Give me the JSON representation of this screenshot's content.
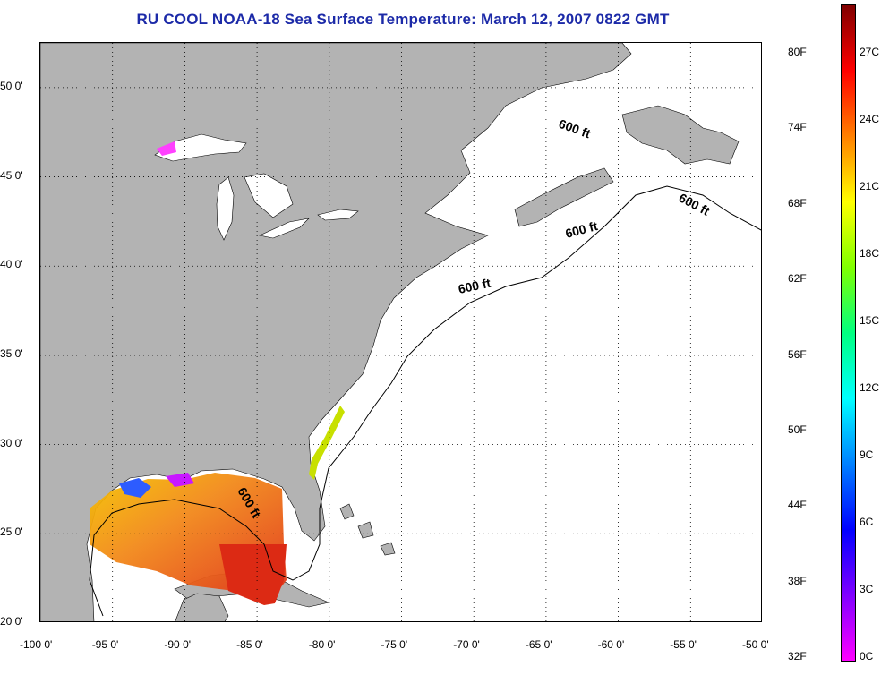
{
  "title": "RU COOL  NOAA-18  Sea Surface Temperature:  March 12, 2007 0822 GMT",
  "map": {
    "lon_range": [
      -100,
      -50
    ],
    "lat_range": [
      20,
      52.5
    ],
    "grid": true,
    "x_ticks": [
      "-100 0'",
      "-95 0'",
      "-90 0'",
      "-85 0'",
      "-80 0'",
      "-75 0'",
      "-70 0'",
      "-65 0'",
      "-60 0'",
      "-55 0'",
      "-50 0'"
    ],
    "y_ticks": [
      "50 0'",
      "45 0'",
      "40 0'",
      "35 0'",
      "30 0'",
      "25 0'",
      "20 0'"
    ],
    "contour_labels": [
      "600 ft",
      "600 ft",
      "600 ft",
      "600 ft",
      "600 ft"
    ],
    "land_color": "#b3b3b3",
    "water_color": "#ffffff"
  },
  "colorbar": {
    "fahrenheit_labels": [
      "80F",
      "74F",
      "68F",
      "62F",
      "56F",
      "50F",
      "44F",
      "38F",
      "32F"
    ],
    "celsius_labels": [
      "27C",
      "24C",
      "21C",
      "18C",
      "15C",
      "12C",
      "9C",
      "6C",
      "3C",
      "0C"
    ],
    "colors": [
      "#ff00ff",
      "#8000ff",
      "#0000ff",
      "#0080ff",
      "#00ffff",
      "#00ff80",
      "#80ff00",
      "#ffff00",
      "#ff8000",
      "#ff0000",
      "#800000"
    ]
  }
}
